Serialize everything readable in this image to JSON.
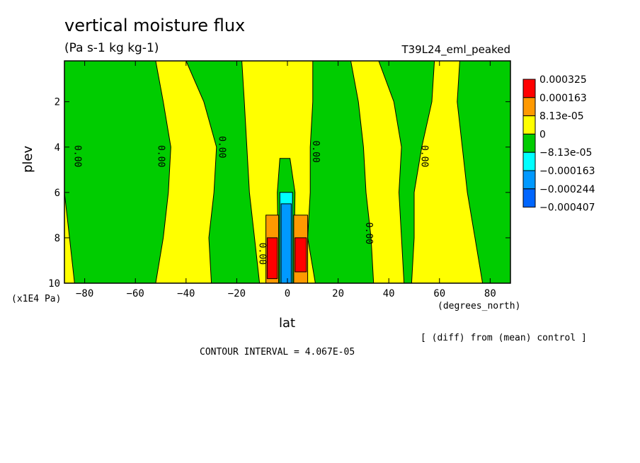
{
  "chart_data": {
    "type": "heatmap",
    "title": "vertical moisture flux",
    "subtitle": "(Pa s-1 kg kg-1)",
    "run_label": "T39L24_eml_peaked",
    "xlabel": "lat",
    "ylabel": "plev",
    "x_unit": "(degrees_north)",
    "y_unit": "(x1E4 Pa)",
    "xlim": [
      -88,
      88
    ],
    "ylim": [
      0.2,
      10
    ],
    "y_inverted": true,
    "x_ticks": [
      -80,
      -60,
      -40,
      -20,
      0,
      20,
      40,
      60,
      80
    ],
    "y_ticks": [
      2,
      4,
      6,
      8,
      10
    ],
    "contour_interval_text": "CONTOUR INTERVAL = 4.067E-05",
    "note": "[ (diff) from (mean) control ]",
    "contour_line_label": "0.00",
    "colorbar": {
      "levels": [
        "0.000325",
        "0.000163",
        "8.13e-05",
        "0",
        "-8.13e-05",
        "-0.000163",
        "-0.000244",
        "-0.000407"
      ],
      "colors": [
        "#ff0000",
        "#ff9900",
        "#ffff00",
        "#00cc00",
        "#00ffff",
        "#0099ff",
        "#0066ff"
      ]
    },
    "colors": {
      "background": "#ffff00",
      "negative": "#00cc00",
      "positive_strong": "#ff0000",
      "positive_mid": "#ff9900",
      "negative_strong": "#0099ff",
      "negative_mid": "#00ffff"
    },
    "regions": [
      {
        "level": "negative",
        "points": [
          [
            -88,
            0.2
          ],
          [
            -52,
            0.2
          ],
          [
            -49,
            2
          ],
          [
            -46,
            4
          ],
          [
            -47,
            6
          ],
          [
            -49,
            8
          ],
          [
            -52,
            10
          ],
          [
            -84,
            10
          ],
          [
            -86,
            8
          ],
          [
            -88,
            6
          ]
        ]
      },
      {
        "level": "negative",
        "points": [
          [
            -40,
            0.2
          ],
          [
            -18,
            0.2
          ],
          [
            -17,
            2
          ],
          [
            -16,
            4
          ],
          [
            -15,
            6
          ],
          [
            -13,
            8
          ],
          [
            -11,
            10
          ],
          [
            -30,
            10
          ],
          [
            -31,
            8
          ],
          [
            -29,
            6
          ],
          [
            -28,
            4
          ],
          [
            -33,
            2
          ]
        ]
      },
      {
        "level": "negative",
        "points": [
          [
            -3,
            4.5
          ],
          [
            1,
            4.5
          ],
          [
            3,
            6
          ],
          [
            2.5,
            10
          ],
          [
            -3.5,
            10
          ],
          [
            -4,
            6
          ]
        ]
      },
      {
        "level": "negative",
        "points": [
          [
            10,
            0.2
          ],
          [
            25,
            0.2
          ],
          [
            28,
            2
          ],
          [
            30,
            4
          ],
          [
            31,
            6
          ],
          [
            33,
            8
          ],
          [
            34,
            10
          ],
          [
            11,
            10
          ],
          [
            8,
            8
          ],
          [
            9,
            6
          ],
          [
            9,
            4
          ],
          [
            10,
            2
          ]
        ]
      },
      {
        "level": "negative",
        "points": [
          [
            36,
            0.2
          ],
          [
            58,
            0.2
          ],
          [
            57,
            2
          ],
          [
            53,
            4
          ],
          [
            50,
            6
          ],
          [
            50,
            8
          ],
          [
            49,
            10
          ],
          [
            46,
            10
          ],
          [
            45,
            8
          ],
          [
            44,
            6
          ],
          [
            45,
            4
          ],
          [
            42,
            2
          ]
        ]
      },
      {
        "level": "negative",
        "points": [
          [
            68,
            0.2
          ],
          [
            88,
            0.2
          ],
          [
            88,
            10
          ],
          [
            77,
            10
          ],
          [
            74,
            8
          ],
          [
            71,
            6
          ],
          [
            69,
            4
          ],
          [
            67,
            2
          ]
        ]
      },
      {
        "level": "positive_mid",
        "points": [
          [
            -8.5,
            7
          ],
          [
            -3.5,
            7
          ],
          [
            -3.5,
            10
          ],
          [
            -8.5,
            10
          ]
        ]
      },
      {
        "level": "positive_mid",
        "points": [
          [
            2.5,
            7
          ],
          [
            8,
            7
          ],
          [
            8,
            10
          ],
          [
            2.5,
            10
          ]
        ]
      },
      {
        "level": "positive_strong",
        "points": [
          [
            -8,
            8
          ],
          [
            -4,
            8
          ],
          [
            -4,
            9.8
          ],
          [
            -8,
            9.8
          ]
        ]
      },
      {
        "level": "positive_strong",
        "points": [
          [
            3,
            8
          ],
          [
            7.5,
            8
          ],
          [
            7.5,
            9.5
          ],
          [
            3,
            9.5
          ]
        ]
      },
      {
        "level": "negative_mid",
        "points": [
          [
            -3,
            6
          ],
          [
            2,
            6
          ],
          [
            2,
            10
          ],
          [
            -3,
            10
          ]
        ]
      },
      {
        "level": "negative_strong",
        "points": [
          [
            -2.5,
            6.5
          ],
          [
            1.5,
            6.5
          ],
          [
            1.5,
            10
          ],
          [
            -2.5,
            10
          ]
        ]
      }
    ],
    "line_labels": [
      {
        "lat": -84,
        "plev": 4.4
      },
      {
        "lat": -51,
        "plev": 4.4
      },
      {
        "lat": -27,
        "plev": 4.0
      },
      {
        "lat": -11,
        "plev": 8.7
      },
      {
        "lat": 10,
        "plev": 4.2
      },
      {
        "lat": 31,
        "plev": 7.8
      },
      {
        "lat": 53,
        "plev": 4.4
      }
    ]
  }
}
